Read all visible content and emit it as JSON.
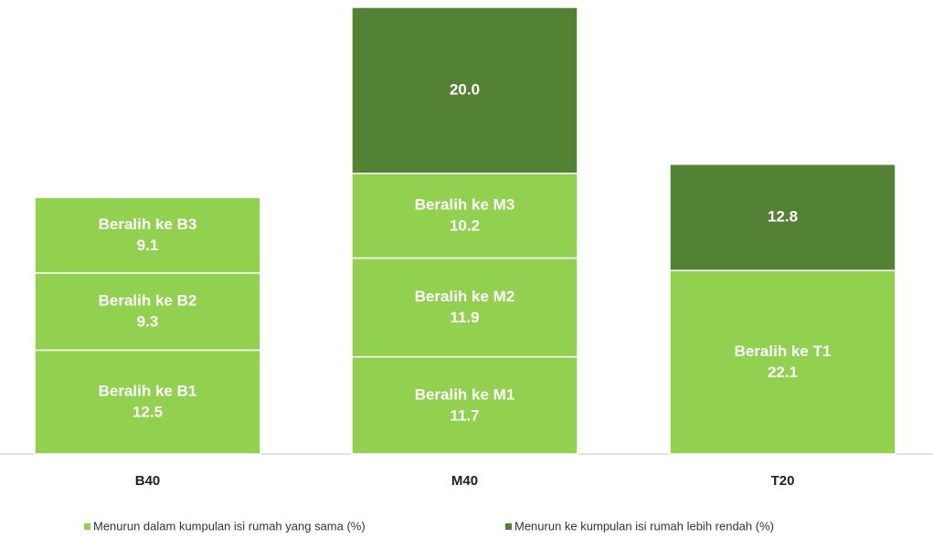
{
  "chart_data": {
    "type": "stacked_bar",
    "categories": [
      "B40",
      "M40",
      "T20"
    ],
    "series": [
      {
        "name": "Menurun dalam kumpulan isi rumah yang sama (%)",
        "color": "#92d050",
        "values": [
          [
            12.5,
            9.3,
            9.1
          ],
          [
            11.7,
            11.9,
            10.2
          ],
          [
            22.1
          ]
        ],
        "labels": [
          [
            "Beralih ke B1",
            "Beralih ke B2",
            "Beralih ke B3"
          ],
          [
            "Beralih ke M1",
            "Beralih ke M2",
            "Beralih ke M3"
          ],
          [
            "Beralih ke T1"
          ]
        ]
      },
      {
        "name": "Menurun ke kumpulan isi rumah lebih rendah (%)",
        "color": "#548235",
        "values": [
          [],
          [
            20.0
          ],
          [
            12.8
          ]
        ]
      }
    ]
  }
}
